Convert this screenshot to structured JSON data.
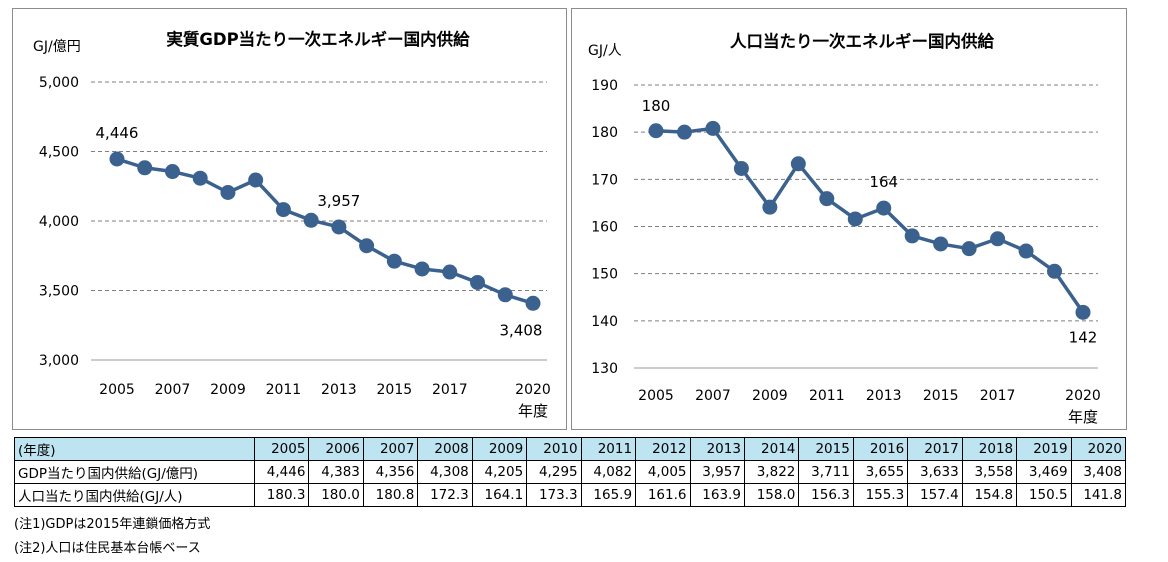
{
  "chart_data": [
    {
      "type": "line",
      "title": "実質GDP当たり一次エネルギー国内供給",
      "ylabel": "GJ/億円",
      "xunit": "年度",
      "x": [
        2005,
        2006,
        2007,
        2008,
        2009,
        2010,
        2011,
        2012,
        2013,
        2014,
        2015,
        2016,
        2017,
        2018,
        2019,
        2020
      ],
      "values": [
        4446,
        4383,
        4356,
        4308,
        4205,
        4295,
        4082,
        4005,
        3957,
        3822,
        3711,
        3655,
        3633,
        3558,
        3469,
        3408
      ],
      "ylim": [
        3000,
        5000
      ],
      "yticks": [
        "3,000",
        "3,500",
        "4,000",
        "4,500",
        "5,000"
      ],
      "xticks": [
        "2005",
        "2007",
        "2009",
        "2011",
        "2013",
        "2015",
        "2017",
        "2020"
      ],
      "annotations": [
        {
          "x": 2005,
          "text": "4,446"
        },
        {
          "x": 2013,
          "text": "3,957"
        },
        {
          "x": 2020,
          "text": "3,408"
        }
      ],
      "grid": true,
      "color": "#3b628f"
    },
    {
      "type": "line",
      "title": "人口当たり一次エネルギー国内供給",
      "ylabel": "GJ/人",
      "xunit": "年度",
      "x": [
        2005,
        2006,
        2007,
        2008,
        2009,
        2010,
        2011,
        2012,
        2013,
        2014,
        2015,
        2016,
        2017,
        2018,
        2019,
        2020
      ],
      "values": [
        180.3,
        180.0,
        180.8,
        172.3,
        164.1,
        173.3,
        165.9,
        161.6,
        163.9,
        158.0,
        156.3,
        155.3,
        157.4,
        154.8,
        150.5,
        141.8
      ],
      "ylim": [
        130,
        190
      ],
      "yticks": [
        "130",
        "140",
        "150",
        "160",
        "170",
        "180",
        "190"
      ],
      "xticks": [
        "2005",
        "2007",
        "2009",
        "2011",
        "2013",
        "2015",
        "2017",
        "2020"
      ],
      "annotations": [
        {
          "x": 2005,
          "text": "180"
        },
        {
          "x": 2013,
          "text": "164"
        },
        {
          "x": 2020,
          "text": "142"
        }
      ],
      "grid": true,
      "color": "#3b628f"
    }
  ],
  "table": {
    "header_label": "(年度)",
    "years": [
      "2005",
      "2006",
      "2007",
      "2008",
      "2009",
      "2010",
      "2011",
      "2012",
      "2013",
      "2014",
      "2015",
      "2016",
      "2017",
      "2018",
      "2019",
      "2020"
    ],
    "rows": [
      {
        "label": "GDP当たり国内供給(GJ/億円)",
        "values": [
          "4,446",
          "4,383",
          "4,356",
          "4,308",
          "4,205",
          "4,295",
          "4,082",
          "4,005",
          "3,957",
          "3,822",
          "3,711",
          "3,655",
          "3,633",
          "3,558",
          "3,469",
          "3,408"
        ]
      },
      {
        "label": "人口当たり国内供給(GJ/人)",
        "values": [
          "180.3",
          "180.0",
          "180.8",
          "172.3",
          "164.1",
          "173.3",
          "165.9",
          "161.6",
          "163.9",
          "158.0",
          "156.3",
          "155.3",
          "157.4",
          "154.8",
          "150.5",
          "141.8"
        ]
      }
    ],
    "header_color": "#bfe4f1"
  },
  "notes": [
    "(注1)GDPは2015年連鎖価格方式",
    "(注2)人口は住民基本台帳ベース"
  ]
}
